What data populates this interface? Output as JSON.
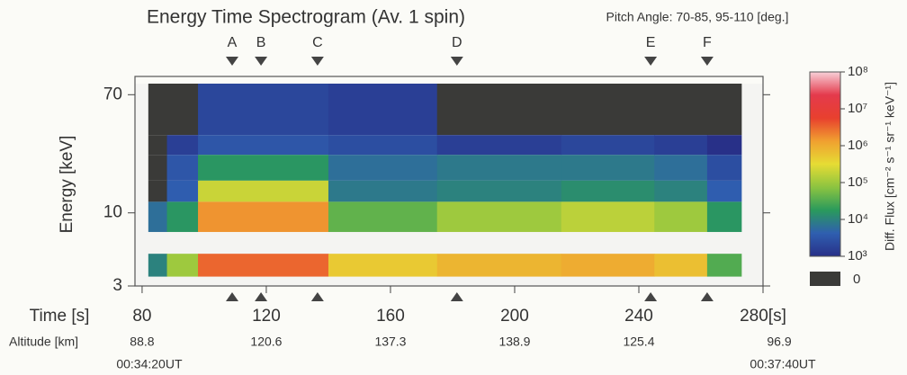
{
  "chart_data": {
    "type": "heatmap",
    "title": "Energy Time Spectrogram (Av. 1 spin)",
    "subtitle": "Pitch Angle: 70-85, 95-110 [deg.]",
    "ylabel": "Energy [keV]",
    "xlabel": "Time [s]",
    "ylog": true,
    "ylim": [
      3,
      84
    ],
    "yticks": [
      70,
      10,
      3
    ],
    "xlim": [
      77.7,
      280
    ],
    "xticks": [
      80,
      120,
      160,
      200,
      240,
      {
        "value": 280,
        "label": "280[s]"
      }
    ],
    "time_edges": [
      82,
      88,
      98,
      140,
      175,
      215,
      245,
      262,
      273
    ],
    "rows": [
      {
        "range": [
          36,
          84
        ],
        "values": [
          0,
          0,
          2000,
          1600,
          0,
          0,
          0,
          0
        ]
      },
      {
        "range": [
          26,
          36
        ],
        "values": [
          0,
          1600,
          3200,
          2500,
          1600,
          2000,
          1600,
          1000
        ]
      },
      {
        "range": [
          17,
          26
        ],
        "values": [
          0,
          3200,
          16000,
          6300,
          8000,
          8000,
          6300,
          2500
        ]
      },
      {
        "range": [
          12,
          17
        ],
        "values": [
          0,
          4000,
          200000,
          8000,
          10000,
          13000,
          10000,
          4000
        ]
      },
      {
        "range": [
          7.3,
          12
        ],
        "values": [
          6300,
          16000,
          1600000,
          40000,
          100000,
          160000,
          100000,
          16000
        ]
      },
      {
        "range": [
          3.5,
          5.1
        ],
        "values": [
          10000,
          100000,
          3200000,
          500000,
          800000,
          1000000,
          630000,
          32000
        ]
      }
    ],
    "events": {
      "labels": [
        "A",
        "B",
        "C",
        "D",
        "E",
        "F"
      ],
      "times": [
        109,
        118.3,
        136.5,
        181.4,
        243.8,
        262
      ]
    },
    "altitude": {
      "label": "Altitude [km]",
      "x": [
        80,
        120,
        160,
        200,
        240,
        280
      ],
      "values": [
        88.8,
        120.6,
        137.3,
        138.9,
        125.4,
        96.9
      ]
    },
    "ut_labels": [
      {
        "x": 80,
        "label": "00:34:20UT"
      },
      {
        "x": 280,
        "label": "00:37:40UT"
      }
    ],
    "colorbar": {
      "label": "Diff. Flux [cm⁻² s⁻¹ sr⁻¹ keV⁻¹]",
      "lim": [
        1000,
        100000000
      ],
      "ticks": [
        {
          "value": 100000000,
          "label": "10⁸"
        },
        {
          "value": 10000000,
          "label": "10⁷"
        },
        {
          "value": 1000000,
          "label": "10⁶"
        },
        {
          "value": 100000,
          "label": "10⁵"
        },
        {
          "value": 10000,
          "label": "10⁴"
        },
        {
          "value": 1000,
          "label": "10³"
        }
      ],
      "zero_label": "0",
      "zero_color": "#3a3a38",
      "colors": [
        "#283088",
        "#2f5fb0",
        "#2a9a5c",
        "#8cc440",
        "#e6dc34",
        "#f0a030",
        "#e8402e",
        "#e43a4c",
        "#f8d0d8"
      ]
    }
  }
}
